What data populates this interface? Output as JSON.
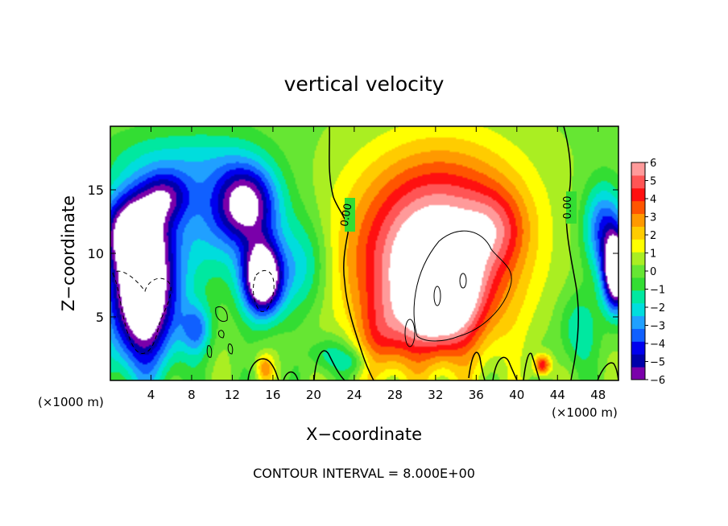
{
  "chart_data": {
    "type": "heatmap",
    "title": "vertical velocity",
    "xlabel": "X−coordinate",
    "ylabel": "Z−coordinate",
    "x_unit": "(×1000 m)",
    "xlim": [
      0,
      50
    ],
    "ylim": [
      0,
      20
    ],
    "x_ticks": [
      4,
      8,
      12,
      16,
      20,
      24,
      28,
      32,
      36,
      40,
      44,
      48
    ],
    "y_ticks": [
      5,
      10,
      15
    ],
    "footer": "CONTOUR INTERVAL = 8.000E+00",
    "contour_labels": [
      "0.00",
      "0.00"
    ],
    "colorbar": {
      "min": -6,
      "max": 6,
      "ticks": [
        6,
        5,
        4,
        3,
        2,
        1,
        0,
        -1,
        -2,
        -3,
        -4,
        -5,
        -6
      ],
      "tick_labels": [
        "6",
        "5",
        "4",
        "3",
        "2",
        "1",
        "0",
        "−1",
        "−2",
        "−3",
        "−4",
        "−5",
        "−6"
      ]
    },
    "colors": {
      "background_field": "#33dd33",
      "strong_down": "#0000cc",
      "strong_up": "#ff1010",
      "saturated": "#ffffff"
    },
    "features": [
      {
        "x": 3.2,
        "z": 7.0,
        "sx": 3.5,
        "sz": 6.0,
        "value": -9.0
      },
      {
        "x": 2.0,
        "z": 12.0,
        "sx": 3.0,
        "sz": 3.0,
        "value": -5.0
      },
      {
        "x": 5.5,
        "z": 14.5,
        "sx": 2.5,
        "sz": 2.0,
        "value": -3.5
      },
      {
        "x": 11.0,
        "z": 13.0,
        "sx": 5.0,
        "sz": 5.0,
        "value": -2.8
      },
      {
        "x": 15.0,
        "z": 8.0,
        "sx": 2.0,
        "sz": 3.0,
        "value": -8.5
      },
      {
        "x": 13.5,
        "z": 14.0,
        "sx": 3.0,
        "sz": 3.0,
        "value": -5.0
      },
      {
        "x": 19.0,
        "z": 9.0,
        "sx": 2.5,
        "sz": 4.0,
        "value": -2.5
      },
      {
        "x": 8.5,
        "z": 4.0,
        "sx": 1.5,
        "sz": 2.0,
        "value": -3.0
      },
      {
        "x": 6.0,
        "z": 17.5,
        "sx": 7.0,
        "sz": 2.5,
        "value": -1.5
      },
      {
        "x": 31.5,
        "z": 9.0,
        "sx": 8.0,
        "sz": 6.5,
        "value": 6.5
      },
      {
        "x": 32.5,
        "z": 6.5,
        "sx": 3.5,
        "sz": 4.0,
        "value": 5.0
      },
      {
        "x": 33.0,
        "z": 15.0,
        "sx": 8.0,
        "sz": 5.0,
        "value": 2.0
      },
      {
        "x": 27.0,
        "z": 3.5,
        "sx": 2.5,
        "sz": 3.0,
        "value": 2.0
      },
      {
        "x": 38.0,
        "z": 12.0,
        "sx": 3.0,
        "sz": 3.0,
        "value": 2.0
      },
      {
        "x": 42.5,
        "z": 1.2,
        "sx": 0.8,
        "sz": 0.8,
        "value": 4.5
      },
      {
        "x": 15.2,
        "z": 1.0,
        "sx": 0.8,
        "sz": 1.0,
        "value": 2.5
      },
      {
        "x": 49.8,
        "z": 8.5,
        "sx": 1.3,
        "sz": 3.0,
        "value": -9.0
      },
      {
        "x": 48.5,
        "z": 12.0,
        "sx": 2.0,
        "sz": 3.5,
        "value": -4.0
      },
      {
        "x": 46.0,
        "z": 4.0,
        "sx": 2.0,
        "sz": 3.0,
        "value": -2.0
      },
      {
        "x": 21.5,
        "z": 2.0,
        "sx": 2.0,
        "sz": 1.5,
        "value": -2.0
      },
      {
        "x": 24.0,
        "z": 1.5,
        "sx": 1.5,
        "sz": 1.0,
        "value": -1.5
      }
    ]
  }
}
